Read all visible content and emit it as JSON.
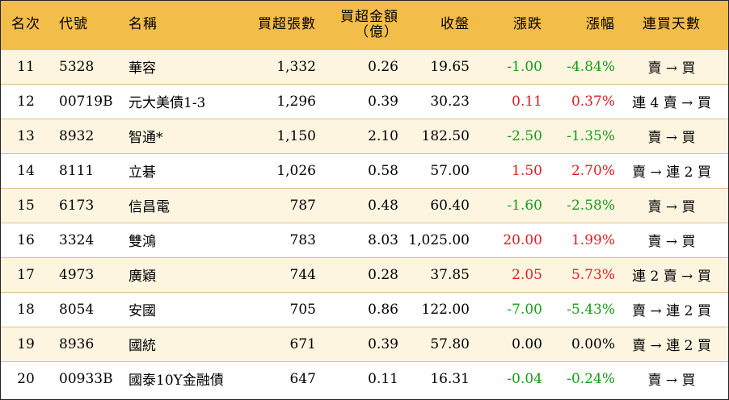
{
  "headers": {
    "rank": "名次",
    "code": "代號",
    "name": "名稱",
    "volume": "買超張數",
    "amount_line1": "買超金額",
    "amount_line2": "（億）",
    "close": "收盤",
    "change": "漲跌",
    "pct": "漲幅",
    "days": "連買天數"
  },
  "rows": [
    {
      "rank": "11",
      "code": "5328",
      "name": "華容",
      "volume": "1,332",
      "amount": "0.26",
      "close": "19.65",
      "change": "-1.00",
      "pct": "-4.84%",
      "days": "賣 → 買",
      "dir": "neg"
    },
    {
      "rank": "12",
      "code": "00719B",
      "name": "元大美債1-3",
      "volume": "1,296",
      "amount": "0.39",
      "close": "30.23",
      "change": "0.11",
      "pct": "0.37%",
      "days": "連 4 賣 → 買",
      "dir": "pos"
    },
    {
      "rank": "13",
      "code": "8932",
      "name": "智通*",
      "volume": "1,150",
      "amount": "2.10",
      "close": "182.50",
      "change": "-2.50",
      "pct": "-1.35%",
      "days": "賣 → 買",
      "dir": "neg"
    },
    {
      "rank": "14",
      "code": "8111",
      "name": "立碁",
      "volume": "1,026",
      "amount": "0.58",
      "close": "57.00",
      "change": "1.50",
      "pct": "2.70%",
      "days": "賣 → 連 2 買",
      "dir": "pos"
    },
    {
      "rank": "15",
      "code": "6173",
      "name": "信昌電",
      "volume": "787",
      "amount": "0.48",
      "close": "60.40",
      "change": "-1.60",
      "pct": "-2.58%",
      "days": "賣 → 買",
      "dir": "neg"
    },
    {
      "rank": "16",
      "code": "3324",
      "name": "雙鴻",
      "volume": "783",
      "amount": "8.03",
      "close": "1,025.00",
      "change": "20.00",
      "pct": "1.99%",
      "days": "賣 → 買",
      "dir": "pos"
    },
    {
      "rank": "17",
      "code": "4973",
      "name": "廣穎",
      "volume": "744",
      "amount": "0.28",
      "close": "37.85",
      "change": "2.05",
      "pct": "5.73%",
      "days": "連 2 賣 → 買",
      "dir": "pos"
    },
    {
      "rank": "18",
      "code": "8054",
      "name": "安國",
      "volume": "705",
      "amount": "0.86",
      "close": "122.00",
      "change": "-7.00",
      "pct": "-5.43%",
      "days": "賣 → 連 2 買",
      "dir": "neg"
    },
    {
      "rank": "19",
      "code": "8936",
      "name": "國統",
      "volume": "671",
      "amount": "0.39",
      "close": "57.80",
      "change": "0.00",
      "pct": "0.00%",
      "days": "賣 → 連 2 買",
      "dir": "zero"
    },
    {
      "rank": "20",
      "code": "00933B",
      "name": "國泰10Y金融債",
      "volume": "647",
      "amount": "0.11",
      "close": "16.31",
      "change": "-0.04",
      "pct": "-0.24%",
      "days": "賣 → 買",
      "dir": "neg"
    }
  ],
  "colors": {
    "header_bg": "#f3bd4a",
    "row_alt_bg": "#fef5e1",
    "up": "#e31b23",
    "down": "#1a9a1a"
  }
}
